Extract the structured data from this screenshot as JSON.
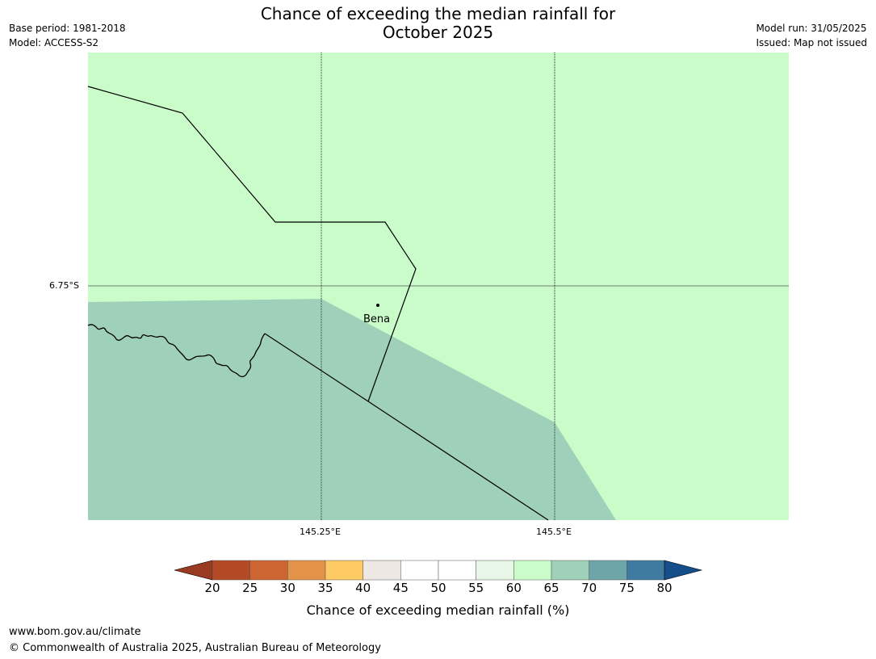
{
  "header": {
    "title_line1": "Chance of exceeding the median rainfall for",
    "title_line2": "October 2025",
    "base_period": "Base period: 1981-2018",
    "model": "Model: ACCESS-S2",
    "model_run": "Model run: 31/05/2025",
    "issued": "Issued: Map not issued"
  },
  "map": {
    "place_label": "Bena",
    "lat_label": "6.75°S",
    "lon_labels": [
      "145.25°E",
      "145.5°E"
    ],
    "region_colors": {
      "upper": "#c9fcc9",
      "lower": "#9fd1ba"
    }
  },
  "colorbar": {
    "label": "Chance of exceeding median rainfall (%)",
    "ticks": [
      "20",
      "25",
      "30",
      "35",
      "40",
      "45",
      "50",
      "55",
      "60",
      "65",
      "70",
      "75",
      "80"
    ],
    "colors": [
      "#9b3a22",
      "#b24a26",
      "#cd6532",
      "#e39448",
      "#fdca63",
      "#ede8e3",
      "#ffffff",
      "#ffffff",
      "#e8f6e8",
      "#c9fcc9",
      "#9fd1ba",
      "#6ea5a8",
      "#3f7ba0",
      "#144f8c"
    ]
  },
  "footer": {
    "url": "www.bom.gov.au/climate",
    "copyright": "© Commonwealth of Australia 2025, Australian Bureau of Meteorology"
  }
}
